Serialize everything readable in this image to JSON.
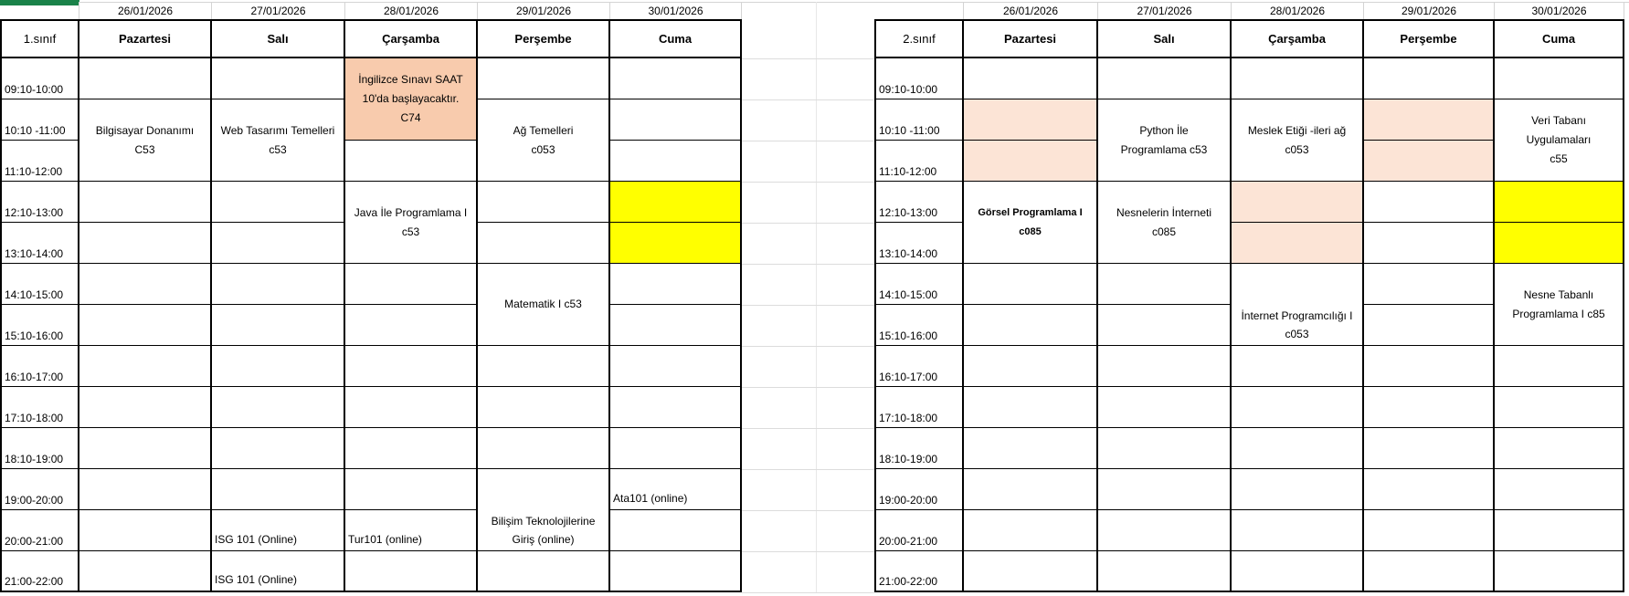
{
  "sheet": {
    "dates": [
      "26/01/2026",
      "27/01/2026",
      "28/01/2026",
      "29/01/2026",
      "30/01/2026"
    ],
    "days": [
      "Pazartesi",
      "Salı",
      "Çarşamba",
      "Perşembe",
      "Cuma"
    ],
    "times": [
      "09:10-10:00",
      "10:10 -11:00",
      "11:10-12:00",
      "12:10-13:00",
      "13:10-14:00",
      "14:10-15:00",
      "15:10-16:00",
      "16:10-17:00",
      "17:10-18:00",
      "18:10-19:00",
      "19:00-20:00",
      "20:00-21:00",
      "21:00-22:00"
    ],
    "colors": {
      "yellow": "#ffff00",
      "peach": "#fce4d6",
      "orange": "#f8cbad",
      "green": "#1a8249"
    },
    "tables": [
      {
        "class_label": "1.sınıf",
        "entries": [
          {
            "day": 0,
            "row": 1,
            "rowspan": 2,
            "lines": [
              "Bilgisayar Donanımı",
              "C53"
            ]
          },
          {
            "day": 1,
            "row": 1,
            "rowspan": 2,
            "lines": [
              "Web Tasarımı Temelleri",
              "c53"
            ]
          },
          {
            "day": 2,
            "row": 0,
            "rowspan": 2,
            "fill": "orange",
            "lines": [
              "İngilizce Sınavı SAAT",
              "10'da başlayacaktır.",
              "C74"
            ]
          },
          {
            "day": 3,
            "row": 1,
            "rowspan": 2,
            "lines": [
              "Ağ Temelleri",
              "c053"
            ]
          },
          {
            "day": 2,
            "row": 3,
            "rowspan": 2,
            "lines": [
              "Java İle Programlama I",
              "c53"
            ]
          },
          {
            "day": 4,
            "row": 3,
            "rowspan": 1,
            "fill": "yellow",
            "lines": []
          },
          {
            "day": 4,
            "row": 4,
            "rowspan": 1,
            "fill": "yellow",
            "lines": []
          },
          {
            "day": 3,
            "row": 5,
            "rowspan": 2,
            "lines": [
              "Matematik I c53"
            ]
          },
          {
            "day": 3,
            "row": 10,
            "rowspan": 2,
            "valign": "bottom",
            "lines": [
              "Bilişim Teknolojilerine",
              "Giriş (online)"
            ]
          },
          {
            "day": 4,
            "row": 10,
            "rowspan": 1,
            "halign": "left",
            "valign": "bottom",
            "lines": [
              "Ata101 (online)"
            ]
          },
          {
            "day": 1,
            "row": 11,
            "rowspan": 1,
            "halign": "left",
            "valign": "bottom",
            "lines": [
              "ISG 101 (Online)"
            ]
          },
          {
            "day": 2,
            "row": 11,
            "rowspan": 1,
            "halign": "left",
            "valign": "bottom",
            "lines": [
              "Tur101 (online)"
            ]
          },
          {
            "day": 1,
            "row": 12,
            "rowspan": 1,
            "halign": "left",
            "valign": "bottom",
            "lines": [
              "ISG 101 (Online)"
            ]
          }
        ]
      },
      {
        "class_label": "2.sınıf",
        "entries": [
          {
            "day": 0,
            "row": 1,
            "rowspan": 1,
            "fill": "peach",
            "lines": []
          },
          {
            "day": 0,
            "row": 2,
            "rowspan": 1,
            "fill": "peach",
            "lines": []
          },
          {
            "day": 1,
            "row": 1,
            "rowspan": 2,
            "lines": [
              "Python İle",
              "Programlama c53"
            ]
          },
          {
            "day": 2,
            "row": 1,
            "rowspan": 2,
            "lines": [
              "Meslek Etiği -ileri ağ",
              "c053"
            ]
          },
          {
            "day": 3,
            "row": 1,
            "rowspan": 1,
            "fill": "peach",
            "lines": []
          },
          {
            "day": 3,
            "row": 2,
            "rowspan": 1,
            "fill": "peach",
            "lines": []
          },
          {
            "day": 4,
            "row": 1,
            "rowspan": 2,
            "lines": [
              "Veri Tabanı",
              "Uygulamaları",
              "c55"
            ]
          },
          {
            "day": 0,
            "row": 3,
            "rowspan": 2,
            "bold": true,
            "lines": [
              "Görsel Programlama I",
              "c085"
            ]
          },
          {
            "day": 1,
            "row": 3,
            "rowspan": 2,
            "lines": [
              "Nesnelerin İnterneti",
              "c085"
            ]
          },
          {
            "day": 2,
            "row": 3,
            "rowspan": 1,
            "fill": "peach",
            "lines": []
          },
          {
            "day": 2,
            "row": 4,
            "rowspan": 1,
            "fill": "peach",
            "lines": []
          },
          {
            "day": 4,
            "row": 3,
            "rowspan": 1,
            "fill": "yellow",
            "lines": []
          },
          {
            "day": 4,
            "row": 4,
            "rowspan": 1,
            "fill": "yellow",
            "lines": []
          },
          {
            "day": 2,
            "row": 5,
            "rowspan": 2,
            "valign": "bottom",
            "lines": [
              "İnternet Programcılığı I",
              "c053"
            ]
          },
          {
            "day": 4,
            "row": 5,
            "rowspan": 2,
            "lines": [
              "Nesne Tabanlı",
              "Programlama I c85"
            ]
          }
        ]
      }
    ]
  }
}
